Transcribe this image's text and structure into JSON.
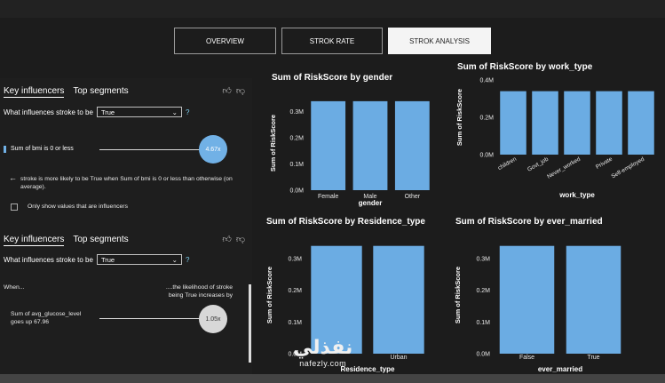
{
  "tabs": [
    {
      "label": "OVERVIEW"
    },
    {
      "label": "STROK RATE"
    },
    {
      "label": "STROK ANALYSIS"
    }
  ],
  "influencer_panel_1": {
    "tab_key": "Key influencers",
    "tab_segments": "Top segments",
    "question": "What influences stroke to be",
    "selected": "True",
    "help": "?",
    "influencer_label": "Sum of bmi is 0 or less",
    "bubble_value": "4.67x",
    "back_arrow": "←",
    "explanation": "stroke is more likely to be True when Sum of bmi is 0 or less than otherwise (on average).",
    "checkbox_label": "Only show values that are influencers"
  },
  "influencer_panel_2": {
    "tab_key": "Key influencers",
    "tab_segments": "Top segments",
    "question": "What influences stroke to be",
    "selected": "True",
    "help": "?",
    "when": "When...",
    "likelihood_l1": "....the likelihood of stroke",
    "likelihood_l2": "being True increases by",
    "influencer_l1": "Sum of avg_glucose_level",
    "influencer_l2": "goes up 67.96",
    "bubble_value": "1.05x"
  },
  "colors": {
    "bar": "#6bace3",
    "accent": "#71b1e6"
  },
  "chart_data": [
    {
      "type": "bar",
      "title": "Sum of RiskScore by gender",
      "xlabel": "gender",
      "ylabel": "Sum of RiskScore",
      "categories": [
        "Female",
        "Male",
        "Other"
      ],
      "values": [
        0.34,
        0.34,
        0.34
      ],
      "yticks": [
        "0.0M",
        "0.1M",
        "0.2M",
        "0.3M"
      ],
      "ylim": [
        0,
        0.36
      ]
    },
    {
      "type": "bar",
      "title": "Sum of RiskScore by work_type",
      "xlabel": "work_type",
      "ylabel": "Sum of RiskScore",
      "categories": [
        "children",
        "Govt_job",
        "Never_worked",
        "Private",
        "Self-employed"
      ],
      "values": [
        0.34,
        0.34,
        0.34,
        0.34,
        0.34
      ],
      "yticks": [
        "0.0M",
        "0.2M",
        "0.4M"
      ],
      "ylim": [
        0,
        0.4
      ]
    },
    {
      "type": "bar",
      "title": "Sum of RiskScore by Residence_type",
      "xlabel": "Residence_type",
      "ylabel": "Sum of RiskScore",
      "categories": [
        "",
        "Urban"
      ],
      "values": [
        0.34,
        0.34
      ],
      "yticks": [
        "0.0M",
        "0.1M",
        "0.2M",
        "0.3M"
      ],
      "ylim": [
        0,
        0.37
      ]
    },
    {
      "type": "bar",
      "title": "Sum of RiskScore by ever_married",
      "xlabel": "ever_married",
      "ylabel": "Sum of RiskScore",
      "categories": [
        "False",
        "True"
      ],
      "values": [
        0.34,
        0.34
      ],
      "yticks": [
        "0.0M",
        "0.1M",
        "0.2M",
        "0.3M"
      ],
      "ylim": [
        0,
        0.37
      ]
    }
  ],
  "watermark": {
    "arabic": "نفذلي",
    "latin": "nafezly.com"
  }
}
